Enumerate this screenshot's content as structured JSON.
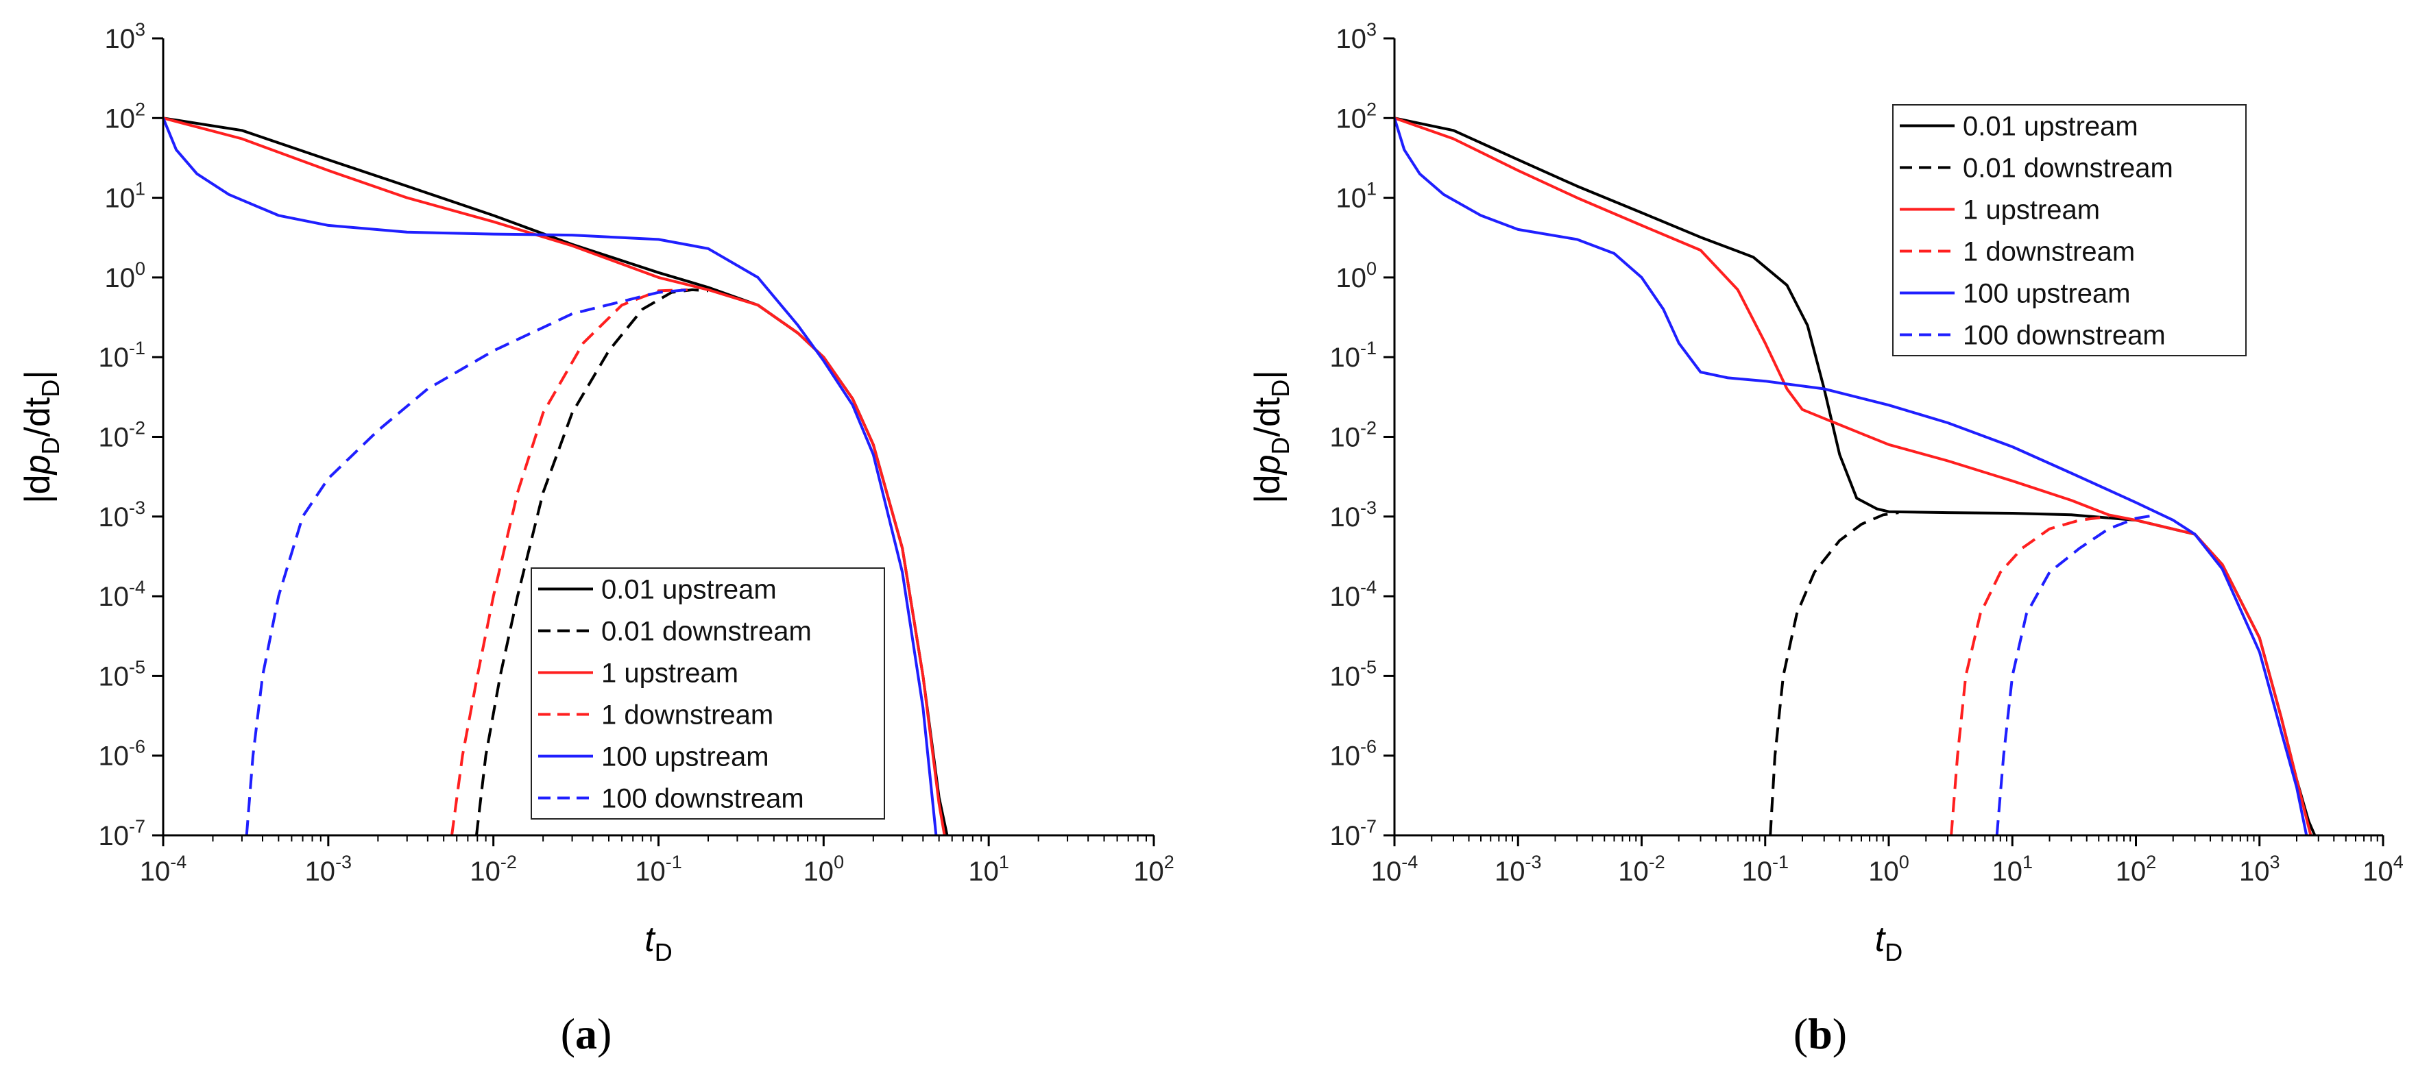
{
  "chart_data": [
    {
      "type": "line",
      "panel_label": "a",
      "x_scale": "log",
      "y_scale": "log",
      "xlabel": "t",
      "xlabel_sub": "D",
      "ylabel_parts": [
        "|d",
        "p",
        "D",
        "/dt",
        "D",
        "|"
      ],
      "xlim": [
        0.0001,
        100
      ],
      "ylim": [
        1e-07,
        1000
      ],
      "x_ticks": [
        {
          "base": "10",
          "exp": "-4",
          "value": 0.0001
        },
        {
          "base": "10",
          "exp": "-3",
          "value": 0.001
        },
        {
          "base": "10",
          "exp": "-2",
          "value": 0.01
        },
        {
          "base": "10",
          "exp": "-1",
          "value": 0.1
        },
        {
          "base": "10",
          "exp": "0",
          "value": 1
        },
        {
          "base": "10",
          "exp": "1",
          "value": 10
        },
        {
          "base": "10",
          "exp": "2",
          "value": 100
        }
      ],
      "y_ticks": [
        {
          "base": "10",
          "exp": "-7",
          "value": 1e-07
        },
        {
          "base": "10",
          "exp": "-6",
          "value": 1e-06
        },
        {
          "base": "10",
          "exp": "-5",
          "value": 1e-05
        },
        {
          "base": "10",
          "exp": "-4",
          "value": 0.0001
        },
        {
          "base": "10",
          "exp": "-3",
          "value": 0.001
        },
        {
          "base": "10",
          "exp": "-2",
          "value": 0.01
        },
        {
          "base": "10",
          "exp": "-1",
          "value": 0.1
        },
        {
          "base": "10",
          "exp": "0",
          "value": 1
        },
        {
          "base": "10",
          "exp": "1",
          "value": 10
        },
        {
          "base": "10",
          "exp": "2",
          "value": 100
        },
        {
          "base": "10",
          "exp": "3",
          "value": 1000
        }
      ],
      "legend_position": "lower-right",
      "series": [
        {
          "name": "0.01 upstream",
          "color": "#000000",
          "dash": "solid",
          "x": [
            0.0001,
            0.0003,
            0.001,
            0.003,
            0.01,
            0.03,
            0.1,
            0.2,
            0.4,
            0.7,
            1,
            1.5,
            2,
            3,
            4,
            5,
            5.6
          ],
          "y": [
            100,
            70,
            30,
            14,
            6,
            2.6,
            1.15,
            0.75,
            0.45,
            0.2,
            0.1,
            0.03,
            0.008,
            0.0004,
            1e-05,
            3e-07,
            1e-07
          ]
        },
        {
          "name": "0.01 downstream",
          "color": "#000000",
          "dash": "dashed",
          "x": [
            0.0079,
            0.009,
            0.011,
            0.014,
            0.02,
            0.03,
            0.05,
            0.08,
            0.12,
            0.16,
            0.2
          ],
          "y": [
            1e-07,
            1e-06,
            1e-05,
            0.0001,
            0.002,
            0.02,
            0.12,
            0.4,
            0.65,
            0.7,
            0.68
          ]
        },
        {
          "name": "1 upstream",
          "color": "#ff1f1f",
          "dash": "solid",
          "x": [
            0.0001,
            0.0003,
            0.001,
            0.003,
            0.01,
            0.03,
            0.1,
            0.2,
            0.4,
            0.7,
            1,
            1.5,
            2,
            3,
            4,
            5,
            5.4
          ],
          "y": [
            100,
            55,
            22,
            10,
            5,
            2.5,
            1.0,
            0.7,
            0.45,
            0.2,
            0.1,
            0.03,
            0.008,
            0.0004,
            1e-05,
            2.5e-07,
            1e-07
          ]
        },
        {
          "name": "1 downstream",
          "color": "#ff1f1f",
          "dash": "dashed",
          "x": [
            0.0056,
            0.0065,
            0.008,
            0.01,
            0.014,
            0.02,
            0.035,
            0.06,
            0.1,
            0.15
          ],
          "y": [
            1e-07,
            1e-06,
            1e-05,
            0.0001,
            0.002,
            0.02,
            0.15,
            0.45,
            0.68,
            0.7
          ]
        },
        {
          "name": "100 upstream",
          "color": "#1f1fff",
          "dash": "solid",
          "x": [
            0.0001,
            0.00012,
            0.00016,
            0.00025,
            0.0005,
            0.001,
            0.003,
            0.01,
            0.03,
            0.1,
            0.2,
            0.4,
            0.7,
            1,
            1.5,
            2,
            3,
            4,
            4.8
          ],
          "y": [
            100,
            40,
            20,
            11,
            6,
            4.5,
            3.7,
            3.5,
            3.4,
            3.0,
            2.3,
            1.0,
            0.25,
            0.09,
            0.025,
            0.006,
            0.0002,
            4e-06,
            1e-07
          ]
        },
        {
          "name": "100 downstream",
          "color": "#1f1fff",
          "dash": "dashed",
          "x": [
            0.00032,
            0.00035,
            0.0004,
            0.0005,
            0.0007,
            0.001,
            0.002,
            0.004,
            0.01,
            0.03,
            0.1,
            0.15
          ],
          "y": [
            1e-07,
            1e-06,
            1e-05,
            0.0001,
            0.001,
            0.003,
            0.012,
            0.04,
            0.12,
            0.35,
            0.65,
            0.7
          ]
        }
      ]
    },
    {
      "type": "line",
      "panel_label": "b",
      "x_scale": "log",
      "y_scale": "log",
      "xlabel": "t",
      "xlabel_sub": "D",
      "ylabel_parts": [
        "|d",
        "p",
        "D",
        "/dt",
        "D",
        "|"
      ],
      "xlim": [
        0.0001,
        10000
      ],
      "ylim": [
        1e-07,
        1000
      ],
      "x_ticks": [
        {
          "base": "10",
          "exp": "-4",
          "value": 0.0001
        },
        {
          "base": "10",
          "exp": "-3",
          "value": 0.001
        },
        {
          "base": "10",
          "exp": "-2",
          "value": 0.01
        },
        {
          "base": "10",
          "exp": "-1",
          "value": 0.1
        },
        {
          "base": "10",
          "exp": "0",
          "value": 1
        },
        {
          "base": "10",
          "exp": "1",
          "value": 10
        },
        {
          "base": "10",
          "exp": "2",
          "value": 100
        },
        {
          "base": "10",
          "exp": "3",
          "value": 1000
        },
        {
          "base": "10",
          "exp": "4",
          "value": 10000
        }
      ],
      "y_ticks": [
        {
          "base": "10",
          "exp": "-7",
          "value": 1e-07
        },
        {
          "base": "10",
          "exp": "-6",
          "value": 1e-06
        },
        {
          "base": "10",
          "exp": "-5",
          "value": 1e-05
        },
        {
          "base": "10",
          "exp": "-4",
          "value": 0.0001
        },
        {
          "base": "10",
          "exp": "-3",
          "value": 0.001
        },
        {
          "base": "10",
          "exp": "-2",
          "value": 0.01
        },
        {
          "base": "10",
          "exp": "-1",
          "value": 0.1
        },
        {
          "base": "10",
          "exp": "0",
          "value": 1
        },
        {
          "base": "10",
          "exp": "1",
          "value": 10
        },
        {
          "base": "10",
          "exp": "2",
          "value": 100
        },
        {
          "base": "10",
          "exp": "3",
          "value": 1000
        }
      ],
      "legend_position": "top-right",
      "series": [
        {
          "name": "0.01 upstream",
          "color": "#000000",
          "dash": "solid",
          "x": [
            0.0001,
            0.0003,
            0.001,
            0.003,
            0.01,
            0.03,
            0.08,
            0.15,
            0.22,
            0.3,
            0.4,
            0.55,
            0.8,
            1,
            3,
            10,
            30,
            100,
            300,
            500,
            1000,
            1500,
            2000,
            2500,
            2800
          ],
          "y": [
            100,
            70,
            30,
            14,
            6.5,
            3.2,
            1.8,
            0.8,
            0.25,
            0.04,
            0.006,
            0.0017,
            0.00125,
            0.00115,
            0.00112,
            0.0011,
            0.00105,
            0.0009,
            0.0006,
            0.00025,
            3e-05,
            3e-06,
            5e-07,
            1.5e-07,
            1e-07
          ]
        },
        {
          "name": "0.01 downstream",
          "color": "#000000",
          "dash": "dashed",
          "x": [
            0.11,
            0.12,
            0.14,
            0.18,
            0.25,
            0.4,
            0.6,
            0.9,
            1.2
          ],
          "y": [
            1e-07,
            1e-06,
            1e-05,
            6e-05,
            0.0002,
            0.0005,
            0.0008,
            0.00105,
            0.00112
          ]
        },
        {
          "name": "1 upstream",
          "color": "#ff1f1f",
          "dash": "solid",
          "x": [
            0.0001,
            0.0003,
            0.001,
            0.003,
            0.01,
            0.03,
            0.06,
            0.1,
            0.15,
            0.2,
            0.3,
            0.6,
            1,
            3,
            10,
            30,
            60,
            100,
            300,
            500,
            1000,
            1500,
            2000,
            2600
          ],
          "y": [
            100,
            55,
            22,
            10,
            4.5,
            2.2,
            0.7,
            0.15,
            0.04,
            0.022,
            0.017,
            0.011,
            0.008,
            0.005,
            0.0028,
            0.0016,
            0.00105,
            0.0009,
            0.0006,
            0.00025,
            3e-05,
            3e-06,
            5e-07,
            1e-07
          ]
        },
        {
          "name": "1 downstream",
          "color": "#ff1f1f",
          "dash": "dashed",
          "x": [
            3.2,
            3.6,
            4.2,
            5.5,
            8,
            12,
            20,
            35,
            60
          ],
          "y": [
            1e-07,
            1e-06,
            1e-05,
            6e-05,
            0.0002,
            0.0004,
            0.0007,
            0.0009,
            0.001
          ]
        },
        {
          "name": "100 upstream",
          "color": "#1f1fff",
          "dash": "solid",
          "x": [
            0.0001,
            0.00012,
            0.00016,
            0.00025,
            0.0005,
            0.001,
            0.003,
            0.006,
            0.01,
            0.015,
            0.02,
            0.03,
            0.05,
            0.1,
            0.3,
            1,
            3,
            10,
            30,
            100,
            200,
            300,
            500,
            1000,
            1500,
            2000,
            2400
          ],
          "y": [
            100,
            40,
            20,
            11,
            6,
            4.0,
            3.0,
            2.0,
            1.0,
            0.4,
            0.15,
            0.065,
            0.055,
            0.05,
            0.04,
            0.025,
            0.015,
            0.0075,
            0.0035,
            0.0015,
            0.0009,
            0.0006,
            0.00022,
            2e-05,
            2e-06,
            4e-07,
            1e-07
          ]
        },
        {
          "name": "100 downstream",
          "color": "#1f1fff",
          "dash": "dashed",
          "x": [
            7.5,
            8.5,
            10,
            13,
            20,
            35,
            60,
            100,
            150
          ],
          "y": [
            1e-07,
            1e-06,
            1e-05,
            6e-05,
            0.0002,
            0.0004,
            0.0007,
            0.00095,
            0.00105
          ]
        }
      ]
    }
  ]
}
